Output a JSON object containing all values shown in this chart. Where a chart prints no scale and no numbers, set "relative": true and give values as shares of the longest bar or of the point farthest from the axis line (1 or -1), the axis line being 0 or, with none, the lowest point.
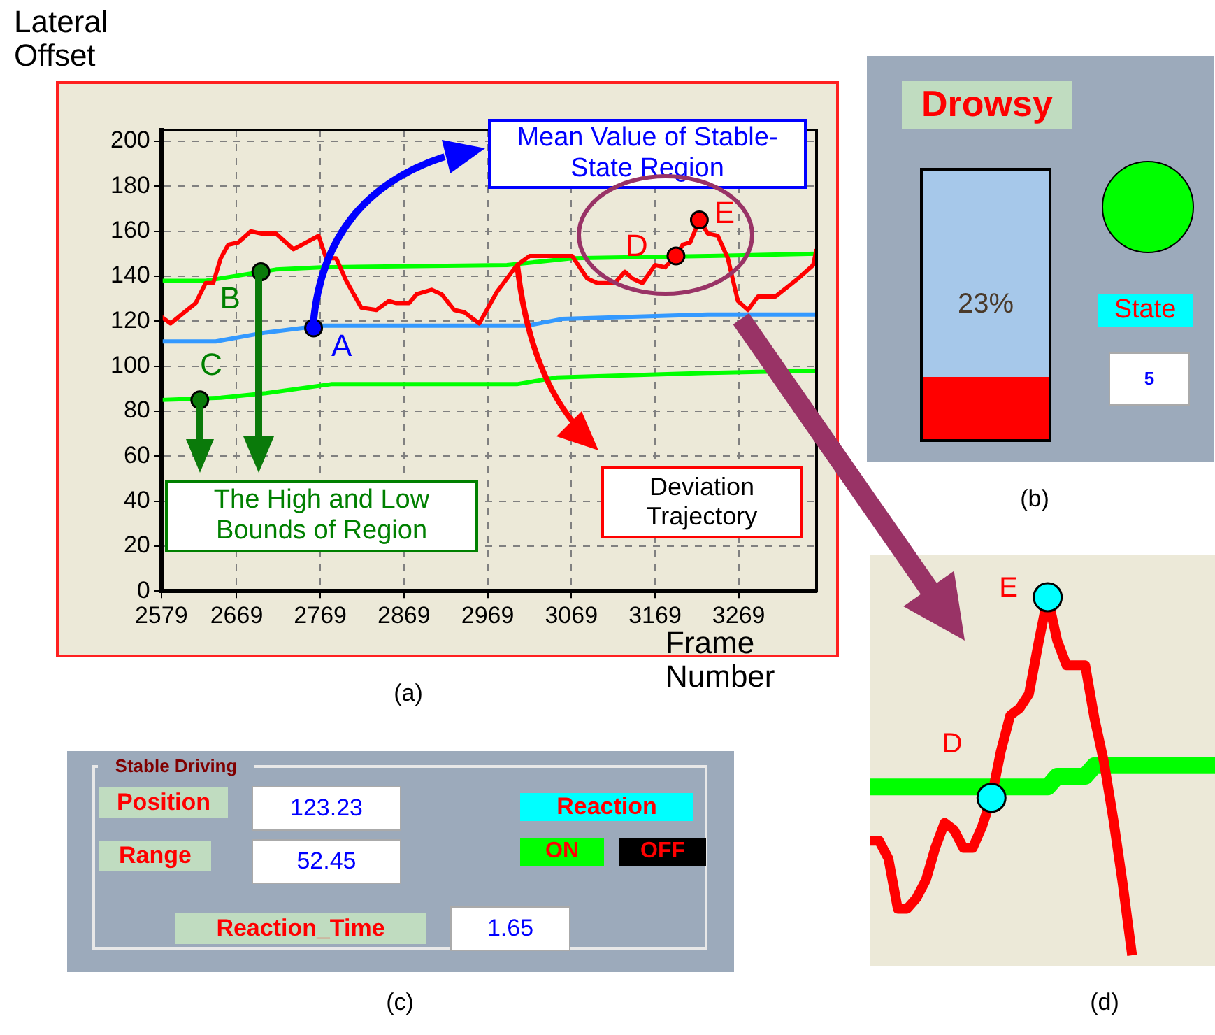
{
  "chart_data": [
    {
      "type": "line",
      "xlabel": "Frame Number",
      "ylabel": "Lateral Offset",
      "xlim": [
        2579,
        3362
      ],
      "ylim": [
        0,
        205
      ],
      "xticks": [
        2579,
        2669,
        2769,
        2869,
        2969,
        3069,
        3169,
        3269
      ],
      "yticks": [
        0,
        20,
        40,
        60,
        80,
        100,
        120,
        140,
        160,
        180,
        200
      ],
      "grid": true,
      "series": [
        {
          "color": "#ff0000",
          "x": [
            2579,
            2590,
            2620,
            2632,
            2641,
            2650,
            2659,
            2671,
            2686,
            2698,
            2716,
            2737,
            2752,
            2767,
            2776,
            2788,
            2800,
            2818,
            2836,
            2851,
            2860,
            2875,
            2884,
            2902,
            2914,
            2929,
            2941,
            2959,
            2980,
            3004,
            3019,
            3070,
            3088,
            3100,
            3121,
            3133,
            3142,
            3154,
            3169,
            3181,
            3194,
            3202,
            3211,
            3222,
            3232,
            3244,
            3256,
            3268,
            3280,
            3292,
            3313,
            3340,
            3358,
            3362
          ],
          "values": [
            122,
            119,
            128,
            137,
            137,
            148,
            154,
            155,
            160,
            159,
            159,
            152,
            155,
            158,
            148,
            148,
            138,
            126,
            125,
            129,
            128,
            128,
            132,
            134,
            132,
            125,
            124,
            119,
            133,
            145,
            149,
            149,
            139,
            137,
            137,
            142,
            139,
            137,
            145,
            144,
            149,
            154,
            155,
            165,
            159,
            158,
            148,
            129,
            125,
            131,
            131,
            139,
            145,
            152
          ]
        },
        {
          "color": "#00ff00",
          "x": [
            2579,
            2632,
            2716,
            2770,
            2992,
            3070,
            3232,
            3362
          ],
          "values": [
            138,
            138,
            143,
            144,
            145,
            148,
            149,
            150
          ]
        },
        {
          "color": "#00ff00",
          "x": [
            2579,
            2650,
            2704,
            2782,
            3004,
            3052,
            3232,
            3362
          ],
          "values": [
            85,
            86,
            88,
            92,
            92,
            95,
            97,
            98
          ]
        },
        {
          "color": "#3399ff",
          "x": [
            2579,
            2644,
            2704,
            2770,
            3016,
            3058,
            3232,
            3362
          ],
          "values": [
            111,
            111,
            115,
            118,
            118,
            121,
            123,
            123
          ]
        }
      ],
      "annotations": [
        {
          "text": "A",
          "x": 2761,
          "y": 117
        },
        {
          "text": "B",
          "x": 2698,
          "y": 142
        },
        {
          "text": "C",
          "x": 2625,
          "y": 85
        },
        {
          "text": "D",
          "x": 3194,
          "y": 149
        },
        {
          "text": "E",
          "x": 3222,
          "y": 165
        },
        "Mean Value of Stable-State Region",
        "The High and Low Bounds of Region",
        "Deviation Trajectory",
        "(a)"
      ]
    },
    {
      "type": "bar",
      "title": "Drowsy",
      "categories": [
        null
      ],
      "values": [
        23
      ],
      "colors": [
        "#ff0000"
      ],
      "ylim": [
        0,
        100
      ],
      "tick_labels": false,
      "value_labels": [
        "23%"
      ],
      "annotations": [
        "State",
        "5",
        "(b)"
      ]
    },
    {
      "type": "other",
      "title": "Stable Driving",
      "annotations": [
        "Position",
        "123.23",
        "Range",
        "52.45",
        "Reaction",
        "ON",
        "OFF",
        "Reaction_Time",
        "1.65",
        "(c)"
      ]
    },
    {
      "type": "line",
      "relative": true,
      "categories": [
        null,
        null,
        null,
        null,
        null,
        null,
        null,
        null,
        null,
        null,
        null,
        null,
        null,
        null,
        null,
        null,
        null,
        null,
        null,
        null,
        null,
        null,
        null,
        null,
        null,
        null,
        null,
        null,
        null,
        null,
        null,
        null,
        null,
        null,
        null,
        null,
        null,
        null
      ],
      "series": [
        {
          "color": "#ff0000",
          "values": [
            0.32,
            0.32,
            0.27,
            0.13,
            0.13,
            0.16,
            0.21,
            0.3,
            0.37,
            0.35,
            0.3,
            0.3,
            0.36,
            0.44,
            0.57,
            0.67,
            0.69,
            0.73,
            0.87,
            1,
            0.88,
            0.81,
            0.81,
            0.81,
            0.66,
            0.54,
            0.38,
            0.2,
            0,
            null,
            null,
            null,
            null,
            null,
            null,
            null,
            null,
            null
          ]
        },
        {
          "color": "#00ff00",
          "values": [
            0.47,
            0.47,
            0.47,
            0.47,
            0.47,
            0.47,
            0.47,
            0.47,
            0.47,
            0.47,
            0.47,
            0.47,
            0.47,
            0.47,
            0.47,
            0.47,
            0.47,
            0.47,
            0.47,
            0.47,
            0.5,
            0.5,
            0.5,
            0.5,
            0.53,
            0.53,
            0.53,
            0.53,
            0.53,
            0.53,
            0.53,
            0.53,
            0.53,
            0.53,
            0.53,
            0.53,
            0.53,
            0.53
          ]
        }
      ],
      "annotations": [
        "D",
        "E",
        "(d)"
      ]
    }
  ]
}
